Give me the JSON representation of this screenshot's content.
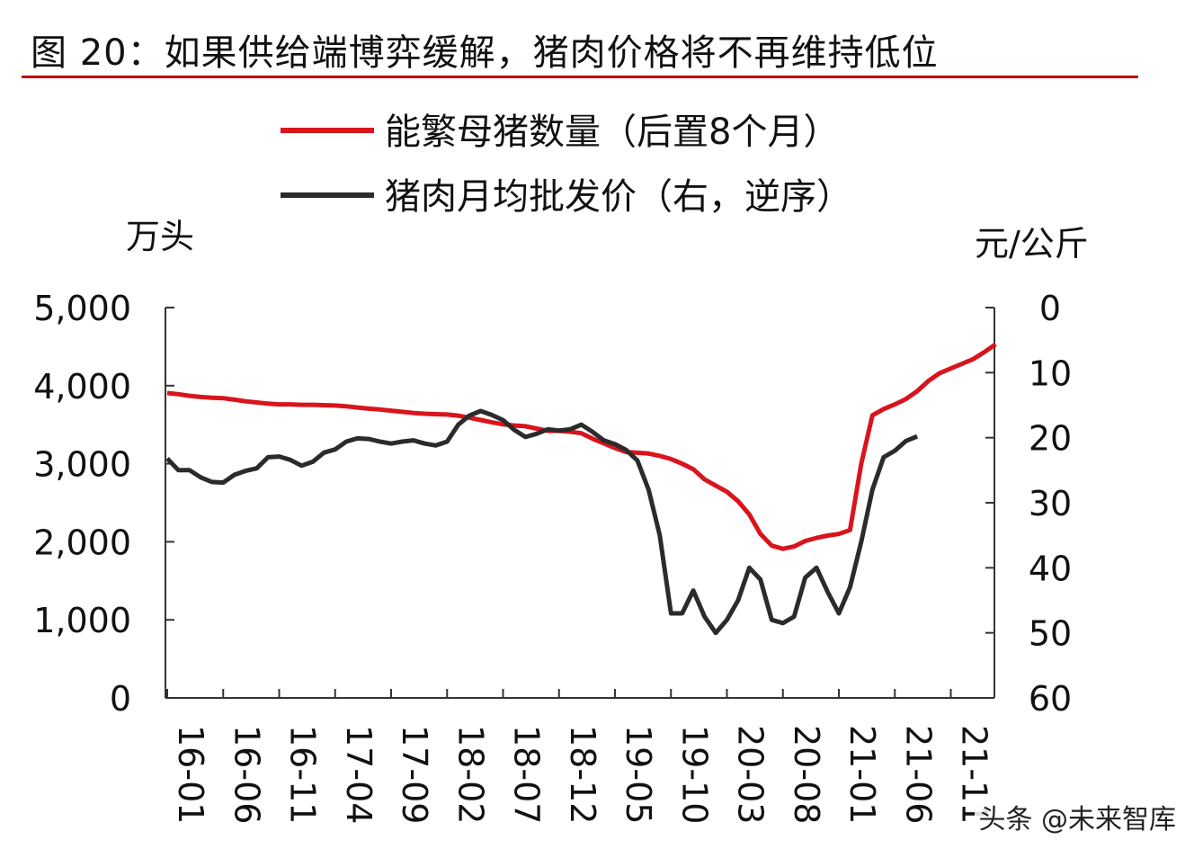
{
  "figure_title": "图 20：如果供给端博弈缓解，猪肉价格将不再维持低位",
  "watermark": "头条 @未来智库",
  "colors": {
    "rule": "#c00000",
    "sows": "#d9141c",
    "price": "#2b2b2b",
    "axis": "#333333"
  },
  "chart_data": {
    "type": "line",
    "left_unit": "万头",
    "right_unit": "元/公斤",
    "left_axis": {
      "min": 0,
      "max": 5000,
      "ticks": [
        0,
        1000,
        2000,
        3000,
        4000,
        5000
      ],
      "tick_labels": [
        "0",
        "1,000",
        "2,000",
        "3,000",
        "4,000",
        "5,000"
      ]
    },
    "right_axis": {
      "min": 0,
      "max": 60,
      "inverted": true,
      "ticks": [
        0,
        10,
        20,
        30,
        40,
        50,
        60
      ],
      "tick_labels": [
        "0",
        "10",
        "20",
        "30",
        "40",
        "50",
        "60"
      ]
    },
    "x_ticks": [
      "16-01",
      "16-06",
      "16-11",
      "17-04",
      "17-09",
      "18-02",
      "18-07",
      "18-12",
      "19-05",
      "19-10",
      "20-03",
      "20-08",
      "21-01",
      "21-06",
      "21-11"
    ],
    "legend": [
      "能繁母猪数量（后置8个月）",
      "猪肉月均批发价（右，逆序）"
    ],
    "series": [
      {
        "name": "能繁母猪数量（后置8个月）",
        "axis": "left",
        "start": "16-01",
        "values": [
          3905,
          3890,
          3870,
          3855,
          3845,
          3840,
          3820,
          3800,
          3785,
          3770,
          3760,
          3760,
          3755,
          3755,
          3750,
          3745,
          3735,
          3720,
          3705,
          3695,
          3680,
          3665,
          3650,
          3640,
          3635,
          3630,
          3615,
          3590,
          3560,
          3530,
          3505,
          3490,
          3480,
          3450,
          3420,
          3420,
          3410,
          3390,
          3320,
          3260,
          3200,
          3150,
          3140,
          3130,
          3100,
          3060,
          3000,
          2930,
          2800,
          2720,
          2640,
          2520,
          2350,
          2100,
          1950,
          1910,
          1940,
          2010,
          2050,
          2080,
          2100,
          2150,
          3000,
          3620,
          3700,
          3760,
          3830,
          3930,
          4060,
          4160,
          4220,
          4280,
          4340,
          4430,
          4530
        ]
      },
      {
        "name": "猪肉月均批发价（右，逆序）",
        "axis": "right",
        "start": "16-01",
        "values": [
          23.2,
          25.0,
          25.0,
          26.1,
          26.8,
          26.9,
          25.7,
          25.1,
          24.7,
          23.0,
          22.9,
          23.4,
          24.3,
          23.7,
          22.3,
          21.8,
          20.6,
          20.1,
          20.2,
          20.6,
          20.9,
          20.6,
          20.4,
          20.9,
          21.2,
          20.6,
          18.0,
          16.6,
          15.9,
          16.5,
          17.3,
          18.8,
          19.9,
          19.4,
          18.7,
          18.9,
          18.7,
          18.0,
          19.1,
          20.4,
          21.0,
          21.9,
          23.5,
          28.0,
          35.0,
          47.0,
          47.0,
          43.5,
          47.5,
          50.0,
          48.0,
          45.0,
          40.0,
          41.8,
          48.0,
          48.5,
          47.5,
          41.5,
          40.0,
          43.7,
          47.0,
          43.0,
          36.0,
          28.0,
          23.0,
          22.0,
          20.5,
          19.8
        ]
      }
    ]
  }
}
